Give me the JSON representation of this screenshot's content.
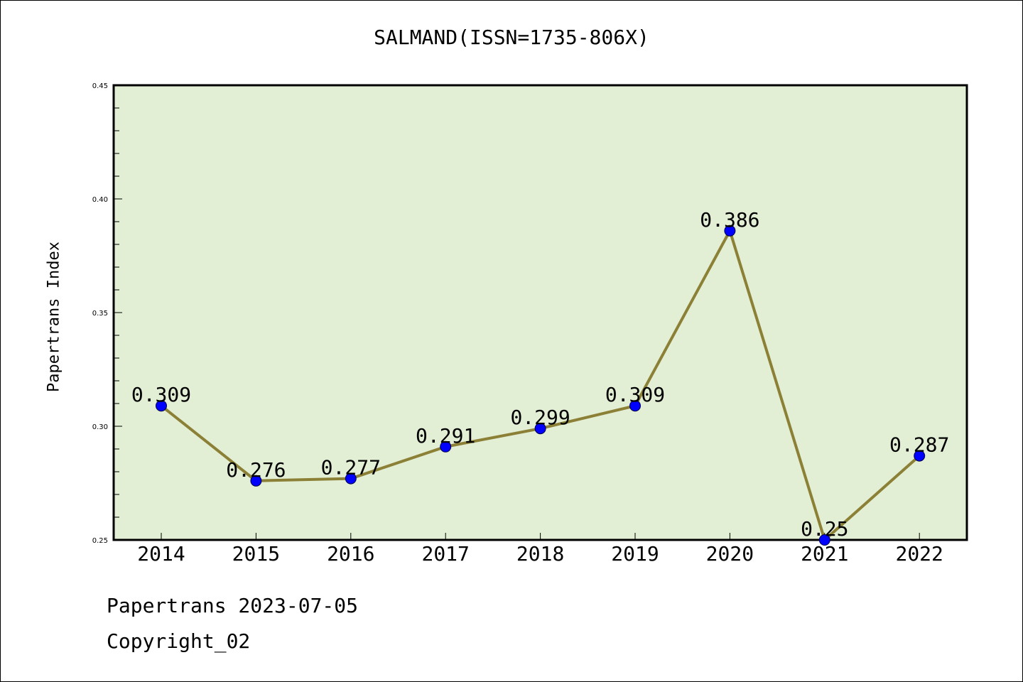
{
  "chart_data": {
    "type": "line",
    "title": "SALMAND(ISSN=1735-806X)",
    "xlabel": "",
    "ylabel": "Papertrans Index",
    "x": [
      "2014",
      "2015",
      "2016",
      "2017",
      "2018",
      "2019",
      "2020",
      "2021",
      "2022"
    ],
    "values": [
      0.309,
      0.276,
      0.277,
      0.291,
      0.299,
      0.309,
      0.386,
      0.25,
      0.287
    ],
    "data_labels": [
      "0.309",
      "0.276",
      "0.277",
      "0.291",
      "0.299",
      "0.309",
      "0.386",
      "0.25",
      "0.287"
    ],
    "ylim": [
      0.25,
      0.45
    ],
    "yticks": [
      0.25,
      0.3,
      0.35,
      0.4,
      0.45
    ],
    "ytick_labels": [
      "0.25",
      "0.30",
      "0.35",
      "0.40",
      "0.45"
    ],
    "grid": false,
    "colors": {
      "plot_background": "#e2efd4",
      "line": "#8b8036",
      "marker": "#0000ff",
      "axis": "#000000"
    }
  },
  "footer": {
    "line1": "Papertrans 2023-07-05",
    "line2": "Copyright_02"
  }
}
